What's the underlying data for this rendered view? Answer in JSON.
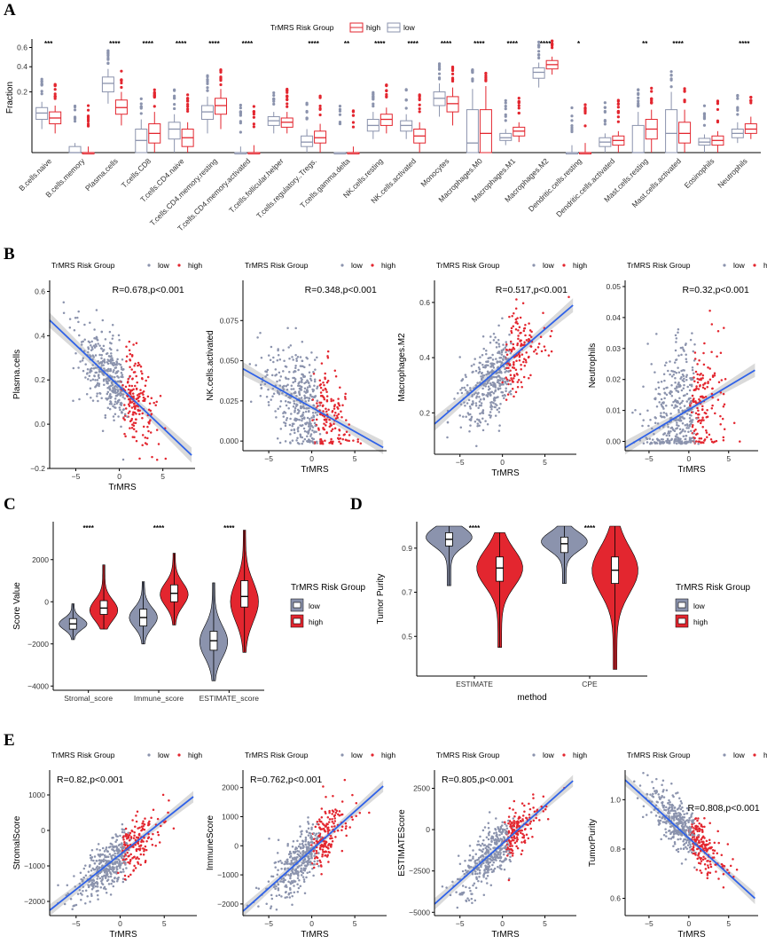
{
  "panel_labels": [
    "A",
    "B",
    "C",
    "D",
    "E"
  ],
  "colors": {
    "high": "#e3262f",
    "low": "#8b93ad",
    "fit": "#2f62e8",
    "band": "#bcbcbc",
    "violin_low": "#8b93ad",
    "violin_high": "#e3262f"
  },
  "chart_data": [
    {
      "id": "A",
      "type": "box",
      "title": "",
      "legend_title": "TrMRS Risk Group",
      "legend": [
        "high",
        "low"
      ],
      "ylabel": "Fraction",
      "ytick_labels": [
        "0.6",
        "0.4",
        "0.2"
      ],
      "ylim": [
        0,
        0.7
      ],
      "scale": "sqrt",
      "categories": [
        "B.cells.naive",
        "B.cells.memory",
        "Plasma.cells",
        "T.cells.CD8",
        "T.cells.CD4.naive",
        "T.cells.CD4.memory.resting",
        "T.cells.CD4.memory.activated",
        "T.cells.follicular.helper",
        "T.cells.regulatory..Tregs.",
        "T.cells.gamma.delta",
        "NK.cells.resting",
        "NK.cells.activated",
        "Monocytes",
        "Macrophages.M0",
        "Macrophages.M1",
        "Macrophages.M2",
        "Dendritic.cells.resting",
        "Dendritic.cells.activated",
        "Mast.cells.resting",
        "Mast.cells.activated",
        "Eosinophils",
        "Neutrophils"
      ],
      "significance": [
        "***",
        "",
        "****",
        "****",
        "****",
        "****",
        "****",
        "",
        "****",
        "**",
        "****",
        "****",
        "****",
        "****",
        "****",
        "****",
        "*",
        "",
        "**",
        "****",
        "",
        "****"
      ],
      "series": [
        {
          "name": "low",
          "q": [
            [
              0.03,
              0.06,
              0.085,
              0.11,
              0.14
            ],
            [
              0,
              0,
              0,
              0.002,
              0.005
            ],
            [
              0.13,
              0.2,
              0.26,
              0.31,
              0.38
            ],
            [
              0,
              0,
              0.008,
              0.03,
              0.06
            ],
            [
              0,
              0.01,
              0.03,
              0.05,
              0.08
            ],
            [
              0.02,
              0.06,
              0.09,
              0.12,
              0.17
            ],
            [
              0,
              0,
              0,
              0,
              0.002
            ],
            [
              0.02,
              0.04,
              0.055,
              0.07,
              0.09
            ],
            [
              0,
              0.002,
              0.006,
              0.015,
              0.03
            ],
            [
              0,
              0,
              0,
              0,
              0
            ],
            [
              0.01,
              0.025,
              0.04,
              0.06,
              0.09
            ],
            [
              0.01,
              0.025,
              0.04,
              0.055,
              0.08
            ],
            [
              0.07,
              0.12,
              0.16,
              0.2,
              0.26
            ],
            [
              0,
              0,
              0.005,
              0.1,
              0.22
            ],
            [
              0.003,
              0.008,
              0.012,
              0.02,
              0.03
            ],
            [
              0.23,
              0.3,
              0.35,
              0.39,
              0.44
            ],
            [
              0,
              0,
              0,
              0,
              0.003
            ],
            [
              0,
              0.002,
              0.006,
              0.012,
              0.02
            ],
            [
              0,
              0,
              0,
              0.04,
              0.09
            ],
            [
              0,
              0,
              0.02,
              0.1,
              0.2
            ],
            [
              0,
              0.003,
              0.006,
              0.011,
              0.018
            ],
            [
              0.005,
              0.012,
              0.02,
              0.03,
              0.05
            ]
          ]
        },
        {
          "name": "high",
          "q": [
            [
              0.02,
              0.045,
              0.065,
              0.09,
              0.12
            ],
            [
              0,
              0,
              0,
              0,
              0.002
            ],
            [
              0.04,
              0.08,
              0.11,
              0.15,
              0.2
            ],
            [
              0,
              0.005,
              0.02,
              0.045,
              0.09
            ],
            [
              0,
              0.002,
              0.012,
              0.03,
              0.05
            ],
            [
              0.03,
              0.08,
              0.12,
              0.16,
              0.22
            ],
            [
              0,
              0,
              0,
              0,
              0.003
            ],
            [
              0.02,
              0.035,
              0.05,
              0.065,
              0.09
            ],
            [
              0,
              0.005,
              0.012,
              0.025,
              0.045
            ],
            [
              0,
              0,
              0,
              0,
              0.002
            ],
            [
              0.02,
              0.04,
              0.06,
              0.08,
              0.11
            ],
            [
              0,
              0.005,
              0.015,
              0.03,
              0.05
            ],
            [
              0.04,
              0.09,
              0.13,
              0.17,
              0.23
            ],
            [
              0,
              0,
              0.02,
              0.1,
              0.24
            ],
            [
              0.006,
              0.015,
              0.025,
              0.035,
              0.05
            ],
            [
              0.33,
              0.38,
              0.42,
              0.46,
              0.5
            ],
            [
              0,
              0,
              0,
              0,
              0.005
            ],
            [
              0,
              0.003,
              0.008,
              0.015,
              0.025
            ],
            [
              0,
              0.01,
              0.03,
              0.06,
              0.1
            ],
            [
              0,
              0.005,
              0.02,
              0.05,
              0.1
            ],
            [
              0,
              0.003,
              0.008,
              0.015,
              0.025
            ],
            [
              0.01,
              0.02,
              0.03,
              0.045,
              0.07
            ]
          ]
        }
      ]
    },
    {
      "id": "B1",
      "type": "scatter",
      "legend_title": "TrMRS Risk Group",
      "legend": [
        "low",
        "high"
      ],
      "xlabel": "TrMRS",
      "ylabel": "Plasma.cells",
      "annotation": "R=0.678,p<0.001",
      "xlim": [
        -8,
        8.7
      ],
      "ylim": [
        -0.2,
        0.65
      ],
      "xticks": [
        -5,
        0,
        5
      ],
      "xtick_labels": [
        "−5",
        "0",
        "5"
      ],
      "yticks": [
        -0.2,
        0,
        0.2,
        0.4,
        0.6
      ],
      "ytick_labels": [
        "−0.2",
        "0.0",
        "0.2",
        "0.4",
        "0.6"
      ],
      "fit": [
        [
          -8,
          0.47
        ],
        [
          8.3,
          -0.14
        ]
      ],
      "trend_slope": -0.037,
      "trend_icpt": 0.17,
      "noise": 0.09
    },
    {
      "id": "B2",
      "type": "scatter",
      "legend_title": "TrMRS Risk Group",
      "legend": [
        "low",
        "high"
      ],
      "xlabel": "TrMRS",
      "ylabel": "NK.cells.activated",
      "annotation": "R=0.348,p<0.001",
      "xlim": [
        -8,
        8.7
      ],
      "ylim": [
        -0.006,
        0.1
      ],
      "xticks": [
        -5,
        0,
        5
      ],
      "xtick_labels": [
        "−5",
        "0",
        "5"
      ],
      "yticks": [
        0,
        0.025,
        0.05,
        0.075
      ],
      "ytick_labels": [
        "0.000",
        "0.025",
        "0.050",
        "0.075"
      ],
      "fit": [
        [
          -8,
          0.045
        ],
        [
          8.3,
          -0.004
        ]
      ],
      "trend_slope": -0.003,
      "trend_icpt": 0.02,
      "noise": 0.016
    },
    {
      "id": "B3",
      "type": "scatter",
      "legend_title": "TrMRS Risk Group",
      "legend": [
        "low",
        "high"
      ],
      "xlabel": "TrMRS",
      "ylabel": "Macrophages.M2",
      "annotation": "R=0.517,p<0.001",
      "xlim": [
        -8,
        8.7
      ],
      "ylim": [
        0.05,
        0.68
      ],
      "xticks": [
        -5,
        0,
        5
      ],
      "xtick_labels": [
        "−5",
        "0",
        "5"
      ],
      "yticks": [
        0.2,
        0.4,
        0.6
      ],
      "ytick_labels": [
        "0.2",
        "0.4",
        "0.6"
      ],
      "fit": [
        [
          -8,
          0.16
        ],
        [
          8.3,
          0.59
        ]
      ],
      "trend_slope": 0.026,
      "trend_icpt": 0.36,
      "noise": 0.07
    },
    {
      "id": "B4",
      "type": "scatter",
      "legend_title": "TrMRS Risk Group",
      "legend": [
        "low",
        "high"
      ],
      "xlabel": "TrMRS",
      "ylabel": "Neutrophils",
      "annotation": "R=0.32,p<0.001",
      "xlim": [
        -8,
        8.7
      ],
      "ylim": [
        -0.003,
        0.052
      ],
      "xticks": [
        -5,
        0,
        5
      ],
      "xtick_labels": [
        "−5",
        "0",
        "5"
      ],
      "yticks": [
        0,
        0.01,
        0.02,
        0.03,
        0.04,
        0.05
      ],
      "ytick_labels": [
        "0.00",
        "0.01",
        "0.02",
        "0.03",
        "0.04",
        "0.05"
      ],
      "fit": [
        [
          -8,
          -0.002
        ],
        [
          8.3,
          0.023
        ]
      ],
      "trend_slope": 0.0015,
      "trend_icpt": 0.011,
      "noise": 0.01
    },
    {
      "id": "C",
      "type": "violin",
      "legend_title": "TrMRS Risk Group",
      "legend": [
        "low",
        "high"
      ],
      "xlabel": "",
      "ylabel": "Score Value",
      "categories": [
        "Stromal_score",
        "Immune_score",
        "ESTIMATE_score"
      ],
      "significance": [
        "****",
        "****",
        "****"
      ],
      "ylim": [
        -4200,
        3800
      ],
      "yticks": [
        -4000,
        -2000,
        0,
        2000
      ],
      "ytick_labels": [
        "−4000",
        "−2000",
        "0",
        "2000"
      ],
      "series": [
        {
          "name": "low",
          "median": [
            -1050,
            -750,
            -1850
          ],
          "q1": [
            -1300,
            -1150,
            -2300
          ],
          "q3": [
            -800,
            -350,
            -1400
          ],
          "min": [
            -1800,
            -2000,
            -3750
          ],
          "max": [
            -100,
            950,
            900
          ],
          "mode": [
            -1050,
            -750,
            -1900
          ]
        },
        {
          "name": "high",
          "median": [
            -300,
            400,
            250
          ],
          "q1": [
            -600,
            0,
            -250
          ],
          "q3": [
            50,
            800,
            1000
          ],
          "min": [
            -1300,
            -1100,
            -2400
          ],
          "max": [
            1750,
            2300,
            3400
          ],
          "mode": [
            -400,
            350,
            0
          ]
        }
      ]
    },
    {
      "id": "D",
      "type": "violin",
      "legend_title": "TrMRS Risk Group",
      "legend": [
        "low",
        "high"
      ],
      "xlabel": "method",
      "ylabel": "Tumor Purity",
      "categories": [
        "ESTIMATE",
        "CPE"
      ],
      "significance": [
        "****",
        "****"
      ],
      "ylim": [
        0.32,
        1.02
      ],
      "yticks": [
        0.5,
        0.7,
        0.9
      ],
      "ytick_labels": [
        "0.5",
        "0.7",
        "0.9"
      ],
      "series": [
        {
          "name": "low",
          "median": [
            0.94,
            0.92
          ],
          "q1": [
            0.91,
            0.88
          ],
          "q3": [
            0.97,
            0.95
          ],
          "min": [
            0.73,
            0.74
          ],
          "max": [
            1.0,
            1.0
          ],
          "mode": [
            0.95,
            0.93
          ]
        },
        {
          "name": "high",
          "median": [
            0.81,
            0.8
          ],
          "q1": [
            0.75,
            0.74
          ],
          "q3": [
            0.86,
            0.86
          ],
          "min": [
            0.45,
            0.35
          ],
          "max": [
            0.97,
            1.0
          ],
          "mode": [
            0.81,
            0.8
          ]
        }
      ]
    },
    {
      "id": "E1",
      "type": "scatter",
      "legend_title": "TrMRS Risk Group",
      "legend": [
        "low",
        "high"
      ],
      "xlabel": "TrMRS",
      "ylabel": "StromalScore",
      "annotation": "R=0.82,p<0.001",
      "xlim": [
        -8,
        8.7
      ],
      "ylim": [
        -2400,
        1700
      ],
      "xticks": [
        -5,
        0,
        5
      ],
      "xtick_labels": [
        "−5",
        "0",
        "5"
      ],
      "yticks": [
        -2000,
        -1000,
        0,
        1000
      ],
      "ytick_labels": [
        "−2000",
        "−1000",
        "0",
        "1000"
      ],
      "fit": [
        [
          -8,
          -2250
        ],
        [
          8.3,
          950
        ]
      ],
      "trend_slope": 200,
      "trend_icpt": -700,
      "noise": 340
    },
    {
      "id": "E2",
      "type": "scatter",
      "legend_title": "TrMRS Risk Group",
      "legend": [
        "low",
        "high"
      ],
      "xlabel": "TrMRS",
      "ylabel": "ImmuneScore",
      "annotation": "R=0.762,p<0.001",
      "xlim": [
        -8,
        8.7
      ],
      "ylim": [
        -2400,
        2600
      ],
      "xticks": [
        -5,
        0,
        5
      ],
      "xtick_labels": [
        "−5",
        "0",
        "5"
      ],
      "yticks": [
        -2000,
        -1000,
        0,
        1000,
        2000
      ],
      "ytick_labels": [
        "−2000",
        "−1000",
        "0",
        "1000",
        "2000"
      ],
      "fit": [
        [
          -8,
          -2250
        ],
        [
          8.3,
          2050
        ]
      ],
      "trend_slope": 265,
      "trend_icpt": -150,
      "noise": 480
    },
    {
      "id": "E3",
      "type": "scatter",
      "legend_title": "TrMRS Risk Group",
      "legend": [
        "low",
        "high"
      ],
      "xlabel": "TrMRS",
      "ylabel": "ESTIMATEScore",
      "annotation": "R=0.805,p<0.001",
      "xlim": [
        -8,
        8.7
      ],
      "ylim": [
        -5200,
        3600
      ],
      "xticks": [
        -5,
        0,
        5
      ],
      "xtick_labels": [
        "−5",
        "0",
        "5"
      ],
      "yticks": [
        -5000,
        -2500,
        0,
        2500
      ],
      "ytick_labels": [
        "−5000",
        "−2500",
        "0",
        "2500"
      ],
      "fit": [
        [
          -8,
          -4500
        ],
        [
          8.3,
          2950
        ]
      ],
      "trend_slope": 460,
      "trend_icpt": -900,
      "noise": 800
    },
    {
      "id": "E4",
      "type": "scatter",
      "legend_title": "TrMRS Risk Group",
      "legend": [
        "low",
        "high"
      ],
      "xlabel": "TrMRS",
      "ylabel": "TumorPurity",
      "annotation": "R=0.808,p<0.001",
      "xlim": [
        -8,
        8.7
      ],
      "ylim": [
        0.53,
        1.12
      ],
      "xticks": [
        -5,
        0,
        5
      ],
      "xtick_labels": [
        "−5",
        "0",
        "5"
      ],
      "yticks": [
        0.6,
        0.8,
        1.0
      ],
      "ytick_labels": [
        "0.6",
        "0.8",
        "1.0"
      ],
      "fit": [
        [
          -8,
          1.08
        ],
        [
          8.3,
          0.6
        ]
      ],
      "trend_slope": -0.03,
      "trend_icpt": 0.86,
      "noise": 0.05
    }
  ]
}
